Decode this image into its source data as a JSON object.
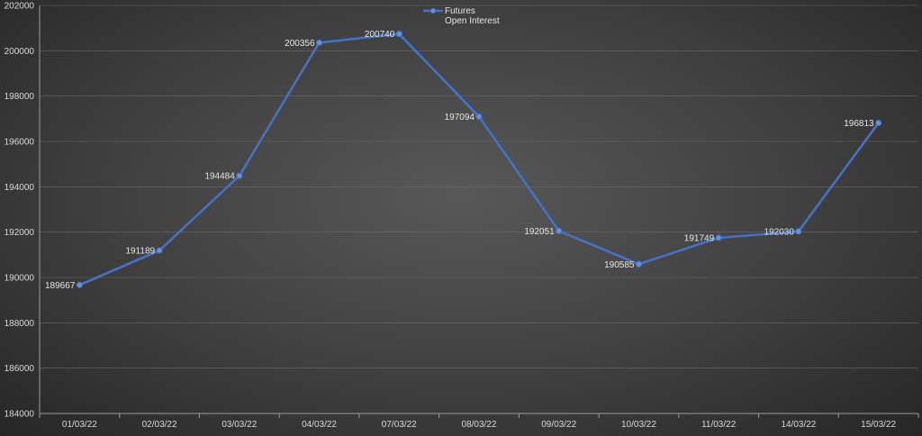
{
  "chart_data": {
    "type": "line",
    "title": "",
    "xlabel": "",
    "ylabel": "",
    "categories": [
      "01/03/22",
      "02/03/22",
      "03/03/22",
      "04/03/22",
      "07/03/22",
      "08/03/22",
      "09/03/22",
      "10/03/22",
      "11/03/22",
      "14/03/22",
      "15/03/22"
    ],
    "series": [
      {
        "name": "Futures Open Interest",
        "legend_lines": [
          "Futures",
          "Open Interest"
        ],
        "color": "#4472c4",
        "values": [
          189667,
          191189,
          194484,
          200356,
          200740,
          197094,
          192051,
          190585,
          191749,
          192030,
          196813
        ],
        "labels": [
          "189667",
          "191189",
          "194484",
          "200356",
          "200740",
          "197094",
          "192051",
          "190585",
          "191749",
          "192030",
          "196813"
        ]
      }
    ],
    "ylim": [
      184000,
      202000
    ],
    "yticks": [
      "184000",
      "186000",
      "188000",
      "190000",
      "192000",
      "194000",
      "196000",
      "198000",
      "200000",
      "202000"
    ],
    "grid": true,
    "legend_position": "top-center"
  }
}
